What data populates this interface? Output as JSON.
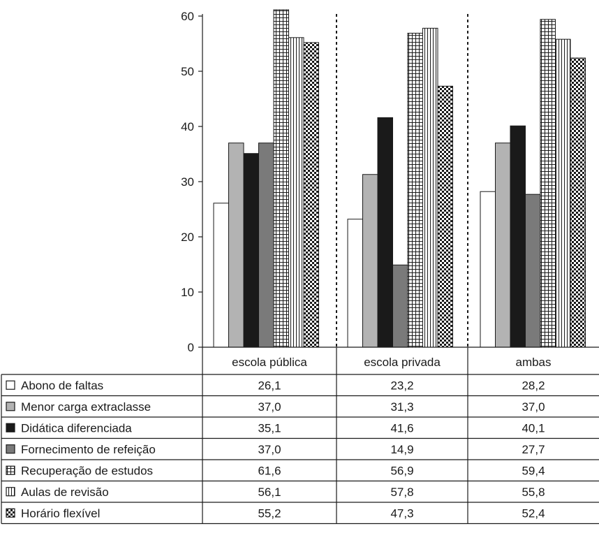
{
  "chart_data": {
    "type": "bar",
    "title": "",
    "xlabel": "",
    "ylabel": "",
    "ylim": [
      0,
      60
    ],
    "yticks": [
      0,
      10,
      20,
      30,
      40,
      50,
      60
    ],
    "grid": false,
    "legend": "table-left",
    "categories": [
      "escola pública",
      "escola privada",
      "ambas"
    ],
    "series": [
      {
        "name": "Abono de faltas",
        "values": [
          26.1,
          23.2,
          28.2
        ],
        "pattern": "white",
        "labels": [
          "26,1",
          "23,2",
          "28,2"
        ]
      },
      {
        "name": "Menor carga extraclasse",
        "values": [
          37.0,
          31.3,
          37.0
        ],
        "pattern": "light-gray",
        "labels": [
          "37,0",
          "31,3",
          "37,0"
        ]
      },
      {
        "name": "Didática diferenciada",
        "values": [
          35.1,
          41.6,
          40.1
        ],
        "pattern": "black",
        "labels": [
          "35,1",
          "41,6",
          "40,1"
        ]
      },
      {
        "name": "Fornecimento de refeição",
        "values": [
          37.0,
          14.9,
          27.7
        ],
        "pattern": "dark-gray",
        "labels": [
          "37,0",
          "14,9",
          "27,7"
        ]
      },
      {
        "name": "Recuperação de estudos",
        "values": [
          61.6,
          56.9,
          59.4
        ],
        "pattern": "grid",
        "labels": [
          "61,6",
          "56,9",
          "59,4"
        ]
      },
      {
        "name": "Aulas de revisão",
        "values": [
          56.1,
          57.8,
          55.8
        ],
        "pattern": "vertical-lines",
        "labels": [
          "56,1",
          "57,8",
          "55,8"
        ]
      },
      {
        "name": "Horário flexível",
        "values": [
          55.2,
          47.3,
          52.4
        ],
        "pattern": "checker",
        "labels": [
          "55,2",
          "47,3",
          "52,4"
        ]
      }
    ],
    "colors": {
      "light_gray": "#b3b3b3",
      "dark_gray": "#7a7a7a",
      "black": "#1a1a1a",
      "white": "#ffffff"
    }
  }
}
